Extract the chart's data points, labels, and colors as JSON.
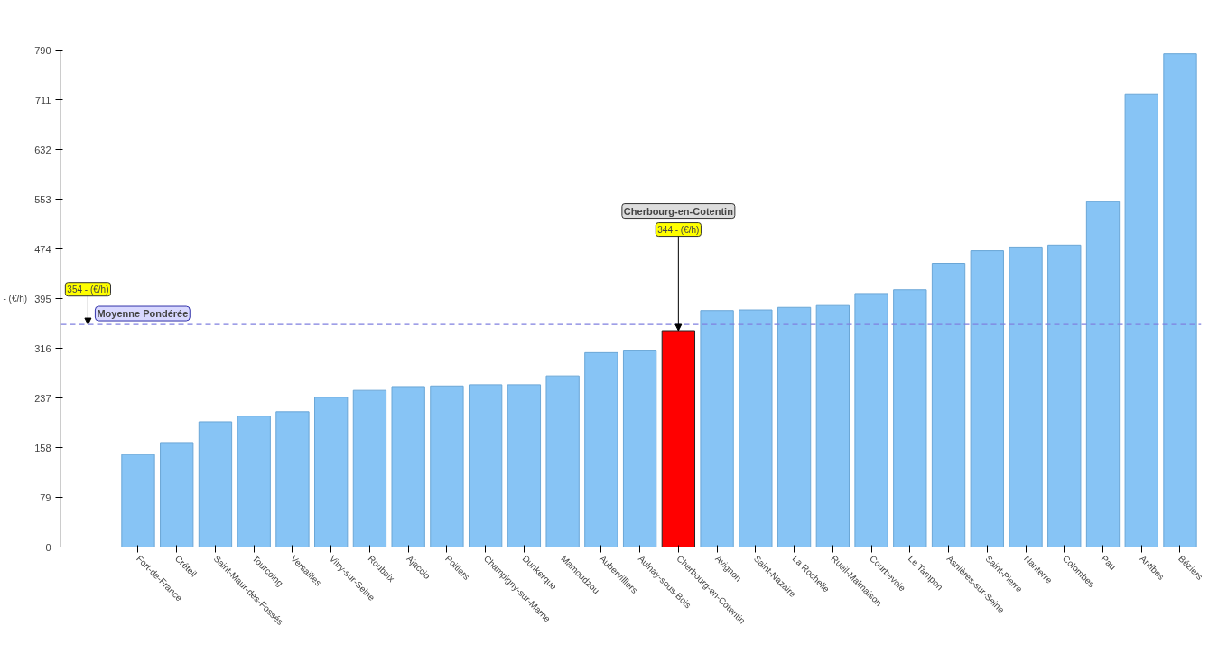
{
  "chart_data": {
    "type": "bar",
    "ylabel": "- (€/h)",
    "categories": [
      "Fort-de-France",
      "Créteil",
      "Saint-Maur-des-Fossés",
      "Tourcoing",
      "Versailles",
      "Vitry-sur-Seine",
      "Roubaix",
      "Ajaccio",
      "Poitiers",
      "Champigny-sur-Marne",
      "Dunkerque",
      "Mamoudzou",
      "Aubervilliers",
      "Aulnay-sous-Bois",
      "Cherbourg-en-Cotentin",
      "Avignon",
      "Saint-Nazaire",
      "La Rochelle",
      "Rueil-Malmaison",
      "Courbevoie",
      "Le Tampon",
      "Asnières-sur-Seine",
      "Saint-Pierre",
      "Nanterre",
      "Colombes",
      "Pau",
      "Antibes",
      "Béziers"
    ],
    "values": [
      147,
      166,
      199,
      208,
      215,
      238,
      249,
      255,
      256,
      258,
      258,
      272,
      309,
      313,
      344,
      376,
      377,
      381,
      384,
      403,
      409,
      451,
      471,
      477,
      480,
      549,
      720,
      784
    ],
    "colors": [
      "#87c4f5",
      "#87c4f5",
      "#87c4f5",
      "#87c4f5",
      "#87c4f5",
      "#87c4f5",
      "#87c4f5",
      "#87c4f5",
      "#87c4f5",
      "#87c4f5",
      "#87c4f5",
      "#87c4f5",
      "#87c4f5",
      "#87c4f5",
      "#ff0000",
      "#87c4f5",
      "#87c4f5",
      "#87c4f5",
      "#87c4f5",
      "#87c4f5",
      "#87c4f5",
      "#87c4f5",
      "#87c4f5",
      "#87c4f5",
      "#87c4f5",
      "#87c4f5",
      "#87c4f5",
      "#87c4f5"
    ],
    "ylim": [
      0,
      790
    ],
    "yticks": [
      0,
      79,
      158,
      237,
      316,
      395,
      474,
      553,
      632,
      711,
      790
    ],
    "ref_lines": [
      {
        "axis": "y",
        "value": 354,
        "label": "Moyenne Pondérée",
        "color": "#8080e0",
        "line_style": "dashed"
      }
    ],
    "annotations": [
      {
        "text": "354 - (€/h)",
        "y": 354
      },
      "Cherbourg-en-Cotentin",
      {
        "text": "344 - (€/h)",
        "x": "Cherbourg-en-Cotentin",
        "y": 344
      }
    ],
    "grid": false
  }
}
